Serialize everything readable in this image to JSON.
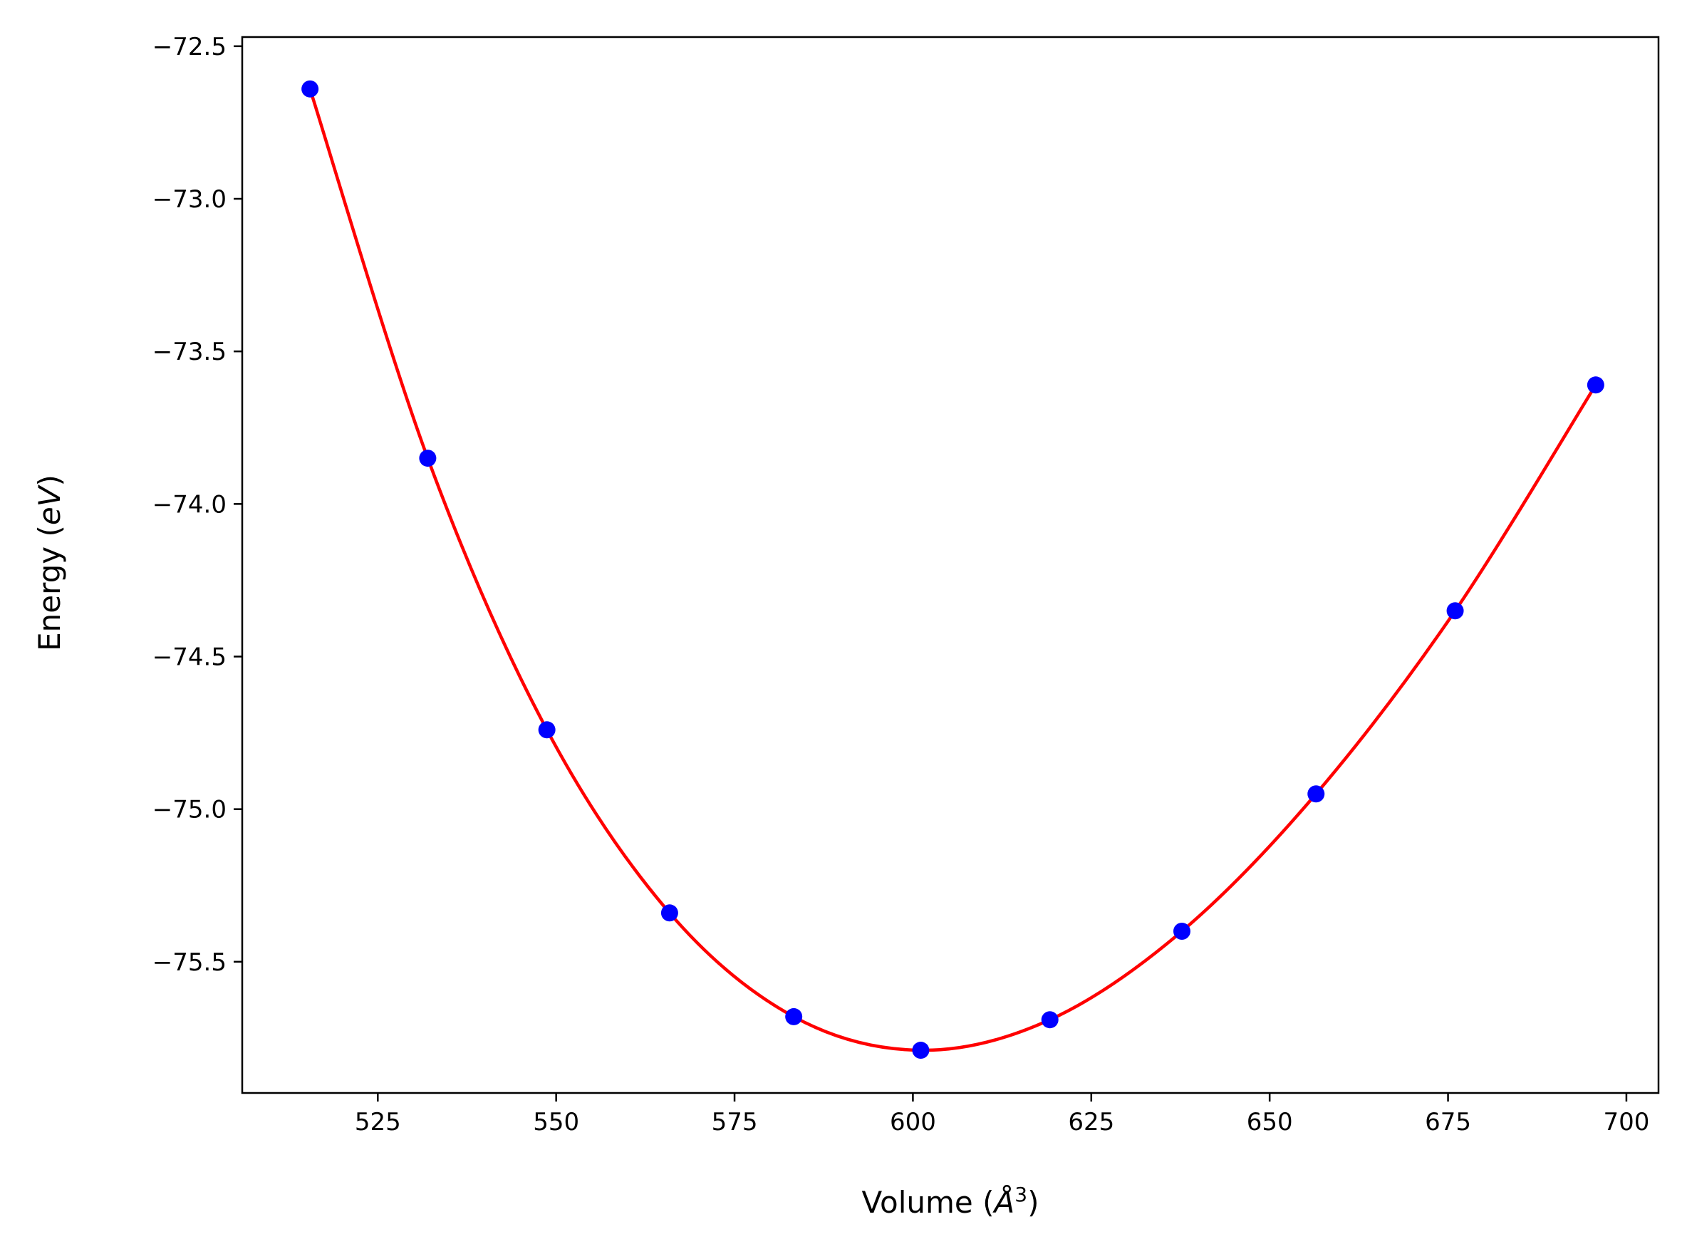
{
  "chart_data": {
    "type": "scatter",
    "title": "",
    "xlabel": "Volume (Å³)",
    "xlabel_parts": {
      "prefix": "Volume (",
      "symbol": "Å",
      "sup": "3",
      "suffix": ")"
    },
    "ylabel": "Energy (eV)",
    "ylabel_parts": {
      "prefix": "Energy (",
      "unit": "eV",
      "suffix": ")"
    },
    "xlim": [
      506,
      704.5
    ],
    "ylim": [
      -75.93,
      -72.47
    ],
    "xticks": [
      525,
      550,
      575,
      600,
      625,
      650,
      675,
      700
    ],
    "xtick_labels": [
      "525",
      "550",
      "575",
      "600",
      "625",
      "650",
      "675",
      "700"
    ],
    "yticks": [
      -72.5,
      -73.0,
      -73.5,
      -74.0,
      -74.5,
      -75.0,
      -75.5
    ],
    "ytick_labels": [
      "−72.5",
      "−73.0",
      "−73.5",
      "−74.0",
      "−74.5",
      "−75.0",
      "−75.5"
    ],
    "grid": false,
    "series": [
      {
        "kind": "points",
        "color": "#0000ff",
        "x": [
          515.5,
          532.0,
          548.7,
          565.9,
          583.3,
          601.1,
          619.2,
          637.7,
          656.5,
          676.0,
          695.7
        ],
        "y": [
          -72.64,
          -73.85,
          -74.74,
          -75.34,
          -75.68,
          -75.79,
          -75.69,
          -75.4,
          -74.95,
          -74.35,
          -73.61
        ]
      },
      {
        "kind": "fit-line",
        "color": "#ff0000",
        "x": [
          515.5,
          532.0,
          548.7,
          565.9,
          583.3,
          601.1,
          619.2,
          637.7,
          656.5,
          676.0,
          695.7
        ],
        "y": [
          -72.64,
          -73.85,
          -74.74,
          -75.34,
          -75.68,
          -75.79,
          -75.69,
          -75.4,
          -74.95,
          -74.35,
          -73.61
        ]
      }
    ]
  }
}
